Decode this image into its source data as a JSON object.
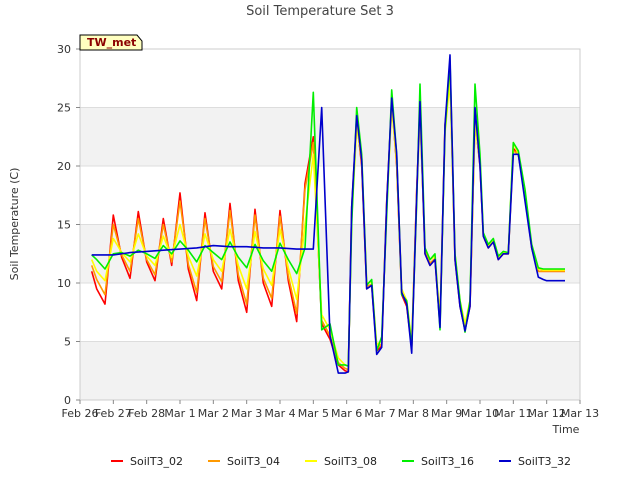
{
  "chart_data": {
    "type": "line",
    "title": "Soil Temperature Set 3",
    "xlabel": "Time",
    "ylabel": "Soil Temperature (C)",
    "ylim": [
      0,
      30
    ],
    "yticks": [
      0,
      5,
      10,
      15,
      20,
      25,
      30
    ],
    "xlim": [
      0,
      16
    ],
    "xticks": [
      {
        "v": 0,
        "label": "Feb 26"
      },
      {
        "v": 1,
        "label": "Feb 27"
      },
      {
        "v": 2,
        "label": "Feb 28"
      },
      {
        "v": 3,
        "label": "Mar 1"
      },
      {
        "v": 4,
        "label": "Mar 2"
      },
      {
        "v": 5,
        "label": "Mar 3"
      },
      {
        "v": 6,
        "label": "Mar 4"
      },
      {
        "v": 7,
        "label": "Mar 5"
      },
      {
        "v": 8,
        "label": "Mar 6"
      },
      {
        "v": 9,
        "label": "Mar 7"
      },
      {
        "v": 10,
        "label": "Mar 8"
      },
      {
        "v": 11,
        "label": "Mar 9"
      },
      {
        "v": 12,
        "label": "Mar 10"
      },
      {
        "v": 13,
        "label": "Mar 11"
      },
      {
        "v": 14,
        "label": "Mar 12"
      },
      {
        "v": 15,
        "label": "Mar 13"
      }
    ],
    "grid": true,
    "legend": "bottom",
    "badge": "TW_met",
    "series": [
      {
        "name": "SoilT3_02",
        "color": "#ff0000",
        "x": [
          0.35,
          0.5,
          0.75,
          1.0,
          1.25,
          1.5,
          1.75,
          2.0,
          2.25,
          2.5,
          2.75,
          3.0,
          3.25,
          3.5,
          3.75,
          4.0,
          4.25,
          4.5,
          4.75,
          5.0,
          5.25,
          5.5,
          5.75,
          6.0,
          6.25,
          6.5,
          6.75,
          7.0,
          7.25,
          7.5,
          7.75,
          7.95,
          8.05,
          8.15,
          8.3,
          8.45,
          8.6,
          8.75,
          8.9,
          9.05,
          9.2,
          9.35,
          9.5,
          9.65,
          9.8,
          9.95,
          10.1,
          10.2,
          10.35,
          10.5,
          10.65,
          10.8,
          10.95,
          11.1,
          11.25,
          11.4,
          11.55,
          11.7,
          11.85,
          12.0,
          12.1,
          12.25,
          12.4,
          12.55,
          12.7,
          12.85,
          13.0,
          13.15,
          13.35,
          13.55,
          13.75,
          13.9,
          14.0,
          14.1,
          14.2,
          14.3,
          14.4,
          14.55
        ],
        "y": [
          11.0,
          9.5,
          8.2,
          15.8,
          12.2,
          10.4,
          16.1,
          11.8,
          10.2,
          15.5,
          11.5,
          17.7,
          11.2,
          8.5,
          16.0,
          11.0,
          9.5,
          16.8,
          10.2,
          7.5,
          16.3,
          10.0,
          8.0,
          16.2,
          10.2,
          6.7,
          18.5,
          22.5,
          6.5,
          5.2,
          3.0,
          2.5,
          2.4,
          16.5,
          24.0,
          20.0,
          9.5,
          9.8,
          4.2,
          4.6,
          17.0,
          25.5,
          20.0,
          9.0,
          8.0,
          4.5,
          18.0,
          25.0,
          12.5,
          11.5,
          12.0,
          6.5,
          23.5,
          28.0,
          12.0,
          8.0,
          6.0,
          8.0,
          24.0,
          20.0,
          14.0,
          13.0,
          13.5,
          12.0,
          12.5,
          12.5,
          21.5,
          21.0,
          17.5,
          13.0,
          11.0,
          11.0,
          11.0,
          11.0,
          11.0,
          11.0,
          11.0,
          11.0
        ]
      },
      {
        "name": "SoilT3_04",
        "color": "#ff9900",
        "x": [
          0.35,
          0.5,
          0.75,
          1.0,
          1.25,
          1.5,
          1.75,
          2.0,
          2.25,
          2.5,
          2.75,
          3.0,
          3.25,
          3.5,
          3.75,
          4.0,
          4.25,
          4.5,
          4.75,
          5.0,
          5.25,
          5.5,
          5.75,
          6.0,
          6.25,
          6.5,
          6.75,
          7.0,
          7.25,
          7.5,
          7.75,
          7.95,
          8.05,
          8.15,
          8.3,
          8.45,
          8.6,
          8.75,
          8.9,
          9.05,
          9.2,
          9.35,
          9.5,
          9.65,
          9.8,
          9.95,
          10.1,
          10.2,
          10.35,
          10.5,
          10.65,
          10.8,
          10.95,
          11.1,
          11.25,
          11.4,
          11.55,
          11.7,
          11.85,
          12.0,
          12.1,
          12.25,
          12.4,
          12.55,
          12.7,
          12.85,
          13.0,
          13.15,
          13.35,
          13.55,
          13.75,
          13.9,
          14.0,
          14.1,
          14.2,
          14.3,
          14.4,
          14.55
        ],
        "y": [
          11.5,
          10.3,
          9.0,
          15.0,
          12.4,
          11.0,
          15.5,
          12.0,
          10.7,
          15.0,
          11.8,
          17.0,
          11.6,
          9.2,
          15.5,
          11.4,
          10.1,
          16.2,
          10.7,
          8.2,
          15.8,
          10.4,
          8.7,
          15.7,
          10.6,
          7.4,
          18.0,
          22.0,
          6.8,
          5.5,
          3.2,
          2.7,
          2.6,
          16.0,
          23.7,
          20.3,
          9.7,
          9.9,
          4.4,
          4.8,
          16.7,
          25.3,
          20.2,
          9.2,
          8.2,
          4.7,
          17.7,
          24.8,
          12.7,
          11.7,
          12.1,
          6.7,
          23.2,
          27.7,
          12.2,
          8.2,
          6.2,
          8.2,
          23.8,
          20.2,
          14.1,
          13.1,
          13.5,
          12.1,
          12.5,
          12.5,
          21.3,
          21.0,
          17.6,
          13.0,
          11.0,
          11.0,
          11.0,
          11.0,
          11.0,
          11.0,
          11.0,
          11.0
        ]
      },
      {
        "name": "SoilT3_08",
        "color": "#ffff00",
        "x": [
          0.35,
          0.5,
          0.75,
          1.0,
          1.25,
          1.5,
          1.75,
          2.0,
          2.25,
          2.5,
          2.75,
          3.0,
          3.25,
          3.5,
          3.75,
          4.0,
          4.25,
          4.5,
          4.75,
          5.0,
          5.25,
          5.5,
          5.75,
          6.0,
          6.25,
          6.5,
          6.75,
          7.0,
          7.25,
          7.5,
          7.75,
          7.95,
          8.05,
          8.15,
          8.3,
          8.45,
          8.6,
          8.75,
          8.9,
          9.05,
          9.2,
          9.35,
          9.5,
          9.65,
          9.8,
          9.95,
          10.1,
          10.2,
          10.35,
          10.5,
          10.65,
          10.8,
          10.95,
          11.1,
          11.25,
          11.4,
          11.55,
          11.7,
          11.85,
          12.0,
          12.1,
          12.25,
          12.4,
          12.55,
          12.7,
          12.85,
          13.0,
          13.15,
          13.35,
          13.55,
          13.75,
          13.9,
          14.0,
          14.1,
          14.2,
          14.3,
          14.4,
          14.55
        ],
        "y": [
          12.0,
          11.0,
          10.2,
          13.8,
          12.6,
          11.8,
          14.2,
          12.3,
          11.5,
          14.0,
          12.2,
          15.0,
          12.3,
          10.6,
          14.2,
          12.0,
          11.0,
          14.6,
          11.5,
          9.5,
          14.4,
          11.2,
          9.8,
          14.6,
          11.3,
          8.6,
          15.0,
          21.0,
          7.3,
          6.0,
          3.6,
          3.0,
          2.9,
          15.5,
          23.3,
          20.7,
          10.0,
          10.1,
          4.7,
          5.1,
          16.3,
          25.0,
          20.5,
          9.5,
          8.5,
          5.0,
          17.3,
          24.5,
          13.0,
          12.0,
          12.3,
          7.0,
          22.8,
          27.3,
          12.5,
          8.5,
          6.5,
          8.5,
          23.5,
          20.5,
          14.2,
          13.2,
          13.6,
          12.2,
          12.6,
          12.5,
          22.0,
          21.0,
          17.7,
          13.0,
          11.2,
          11.1,
          11.1,
          11.1,
          11.1,
          11.1,
          11.1,
          11.1
        ]
      },
      {
        "name": "SoilT3_16",
        "color": "#00ee00",
        "x": [
          0.35,
          0.5,
          0.75,
          1.0,
          1.25,
          1.5,
          1.75,
          2.0,
          2.25,
          2.5,
          2.75,
          3.0,
          3.25,
          3.5,
          3.75,
          4.0,
          4.25,
          4.5,
          4.75,
          5.0,
          5.25,
          5.5,
          5.75,
          6.0,
          6.25,
          6.5,
          6.75,
          7.0,
          7.25,
          7.5,
          7.75,
          7.95,
          8.05,
          8.15,
          8.3,
          8.45,
          8.6,
          8.75,
          8.9,
          9.05,
          9.2,
          9.35,
          9.5,
          9.65,
          9.8,
          9.95,
          10.1,
          10.2,
          10.35,
          10.5,
          10.65,
          10.8,
          10.95,
          11.1,
          11.25,
          11.4,
          11.55,
          11.7,
          11.85,
          12.0,
          12.1,
          12.25,
          12.4,
          12.55,
          12.7,
          12.85,
          13.0,
          13.15,
          13.35,
          13.55,
          13.75,
          13.9,
          14.0,
          14.1,
          14.2,
          14.3,
          14.4,
          14.55
        ],
        "y": [
          12.4,
          12.0,
          11.2,
          12.5,
          12.6,
          12.3,
          12.8,
          12.5,
          12.1,
          13.2,
          12.5,
          13.6,
          12.8,
          11.8,
          13.2,
          12.6,
          12.0,
          13.5,
          12.2,
          11.3,
          13.3,
          11.9,
          11.0,
          13.4,
          12.0,
          10.8,
          13.0,
          26.3,
          6.0,
          6.5,
          3.0,
          3.0,
          2.9,
          15.0,
          25.0,
          21.0,
          9.8,
          10.3,
          4.2,
          5.4,
          15.8,
          26.5,
          21.0,
          9.0,
          8.5,
          4.5,
          16.8,
          27.0,
          13.0,
          12.0,
          12.5,
          6.0,
          23.0,
          29.0,
          12.5,
          8.5,
          5.8,
          8.5,
          27.0,
          21.0,
          14.3,
          13.3,
          13.8,
          12.3,
          12.7,
          12.6,
          22.0,
          21.3,
          18.0,
          13.3,
          11.3,
          11.2,
          11.2,
          11.2,
          11.2,
          11.2,
          11.2,
          11.2
        ]
      },
      {
        "name": "SoilT3_32",
        "color": "#0000cc",
        "x": [
          0.35,
          1.0,
          1.5,
          2.0,
          2.5,
          3.0,
          3.5,
          4.0,
          4.5,
          5.0,
          5.5,
          6.0,
          6.5,
          7.0,
          7.25,
          7.5,
          7.75,
          7.95,
          8.05,
          8.15,
          8.3,
          8.45,
          8.6,
          8.75,
          8.9,
          9.05,
          9.2,
          9.35,
          9.5,
          9.65,
          9.8,
          9.95,
          10.1,
          10.2,
          10.35,
          10.5,
          10.65,
          10.8,
          10.95,
          11.1,
          11.25,
          11.4,
          11.55,
          11.7,
          11.85,
          12.0,
          12.1,
          12.25,
          12.4,
          12.55,
          12.7,
          12.85,
          13.0,
          13.15,
          13.35,
          13.55,
          13.75,
          13.9,
          14.0,
          14.1,
          14.2,
          14.3,
          14.4,
          14.55
        ],
        "y": [
          12.4,
          12.4,
          12.6,
          12.7,
          12.8,
          12.9,
          13.0,
          13.2,
          13.1,
          13.1,
          13.0,
          13.0,
          12.9,
          12.9,
          25.0,
          5.5,
          2.3,
          2.3,
          2.4,
          16.5,
          24.3,
          20.5,
          9.5,
          9.8,
          3.9,
          4.5,
          16.8,
          25.8,
          21.0,
          9.2,
          8.2,
          4.0,
          17.5,
          25.5,
          12.5,
          11.5,
          12.0,
          6.2,
          23.5,
          29.5,
          12.0,
          8.0,
          5.9,
          8.0,
          25.0,
          20.0,
          14.0,
          13.0,
          13.5,
          12.0,
          12.5,
          12.5,
          21.0,
          21.0,
          17.0,
          13.0,
          10.5,
          10.3,
          10.2,
          10.2,
          10.2,
          10.2,
          10.2,
          10.2
        ]
      }
    ]
  }
}
